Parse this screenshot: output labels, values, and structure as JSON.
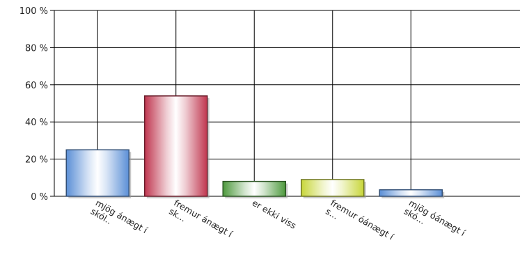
{
  "chart_data": {
    "type": "bar",
    "categories": [
      [
        "mjög ánægt í",
        "skól.."
      ],
      [
        "fremur ánægt í",
        "sk..."
      ],
      [
        "er ekki viss"
      ],
      [
        "fremur óánægt í",
        "s..."
      ],
      [
        "mjög óánægt í",
        "skó..."
      ]
    ],
    "values": [
      25,
      54,
      8,
      9,
      3.5
    ],
    "colors": [
      "#5b8fd6",
      "#c0364f",
      "#4e9a3e",
      "#c8d63a",
      "#5b8fd6"
    ],
    "y_ticks": [
      "0 %",
      "20 %",
      "40 %",
      "60 %",
      "80 %",
      "100 %"
    ],
    "ylim": [
      0,
      100
    ],
    "grid": true,
    "legend": "none"
  }
}
